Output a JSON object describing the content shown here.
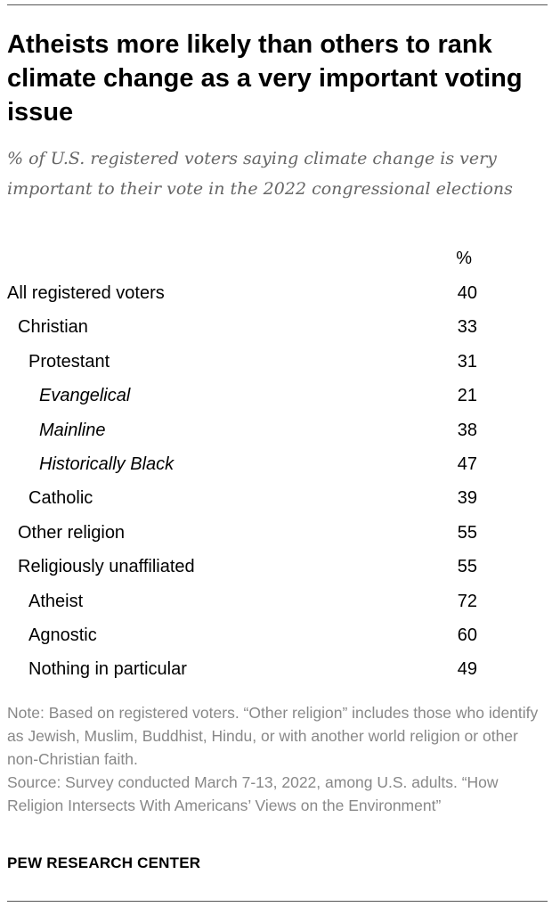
{
  "title": "Atheists more likely than others to rank climate change as a very important voting issue",
  "subtitle": "% of U.S. registered voters saying climate change is very important to their vote in the 2022 congressional elections",
  "column_header": "%",
  "note": "Note: Based on registered voters. “Other religion” includes those who identify as Jewish, Muslim, Buddhist, Hindu, or with another world religion or other non-Christian faith.",
  "source": "Source: Survey conducted March 7-13, 2022, among U.S. adults. “How Religion Intersects With Americans’ Views on the Environment”",
  "brand": "PEW RESEARCH CENTER",
  "chart_data": {
    "type": "table",
    "title": "Atheists more likely than others to rank climate change as a very important voting issue",
    "columns": [
      "%"
    ],
    "rows": [
      {
        "label": "All registered voters",
        "value": 40,
        "level": 0,
        "italic": false
      },
      {
        "label": "Christian",
        "value": 33,
        "level": 1,
        "italic": false
      },
      {
        "label": "Protestant",
        "value": 31,
        "level": 2,
        "italic": false
      },
      {
        "label": "Evangelical",
        "value": 21,
        "level": 3,
        "italic": true
      },
      {
        "label": "Mainline",
        "value": 38,
        "level": 3,
        "italic": true
      },
      {
        "label": "Historically Black",
        "value": 47,
        "level": 3,
        "italic": true
      },
      {
        "label": "Catholic",
        "value": 39,
        "level": 2,
        "italic": false
      },
      {
        "label": "Other religion",
        "value": 55,
        "level": 1,
        "italic": false
      },
      {
        "label": "Religiously unaffiliated",
        "value": 55,
        "level": 1,
        "italic": false
      },
      {
        "label": "Atheist",
        "value": 72,
        "level": 2,
        "italic": false
      },
      {
        "label": "Agnostic",
        "value": 60,
        "level": 2,
        "italic": false
      },
      {
        "label": "Nothing in particular",
        "value": 49,
        "level": 2,
        "italic": false
      }
    ]
  }
}
